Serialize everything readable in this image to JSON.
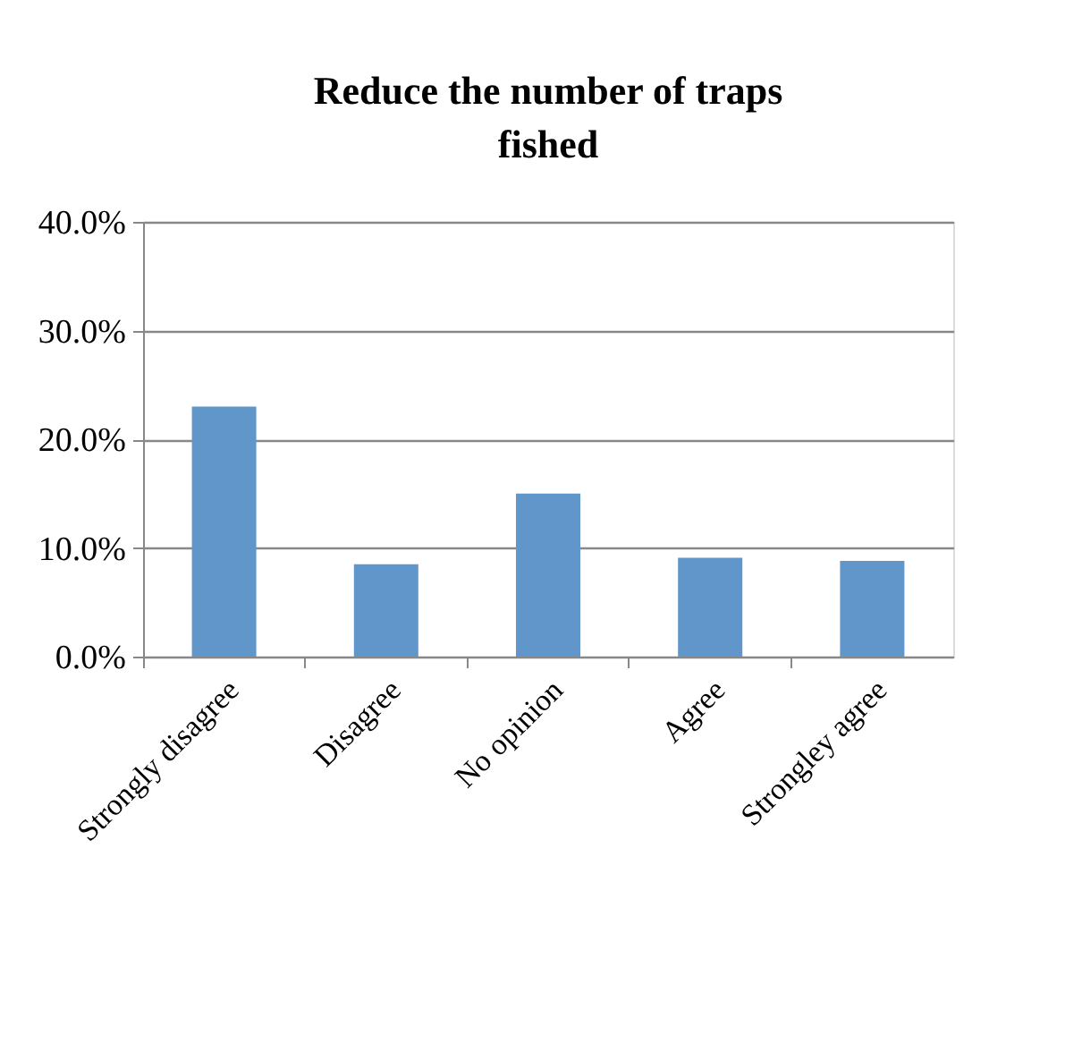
{
  "chart_data": {
    "type": "bar",
    "title": "Reduce the number of traps fished",
    "categories": [
      "Strongly disagree",
      "Disagree",
      "No opinion",
      "Agree",
      "Strongley agree"
    ],
    "values": [
      23.0,
      8.5,
      15.0,
      9.1,
      8.8
    ],
    "color": "#6096c9",
    "ylim": [
      0,
      40
    ],
    "yticks": [
      {
        "value": 0,
        "label": "0.0%"
      },
      {
        "value": 10,
        "label": "10.0%"
      },
      {
        "value": 20,
        "label": "20.0%"
      },
      {
        "value": 30,
        "label": "30.0%"
      },
      {
        "value": 40,
        "label": "40.0%"
      }
    ],
    "grid": "y"
  }
}
